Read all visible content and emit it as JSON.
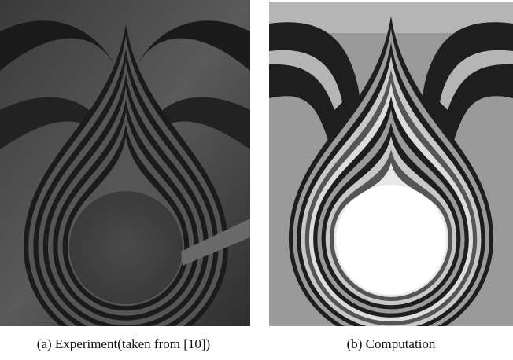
{
  "figure": {
    "subfigures": [
      {
        "caption": "(a) Experiment(taken from [10])"
      },
      {
        "caption": "(b) Computation"
      }
    ]
  }
}
